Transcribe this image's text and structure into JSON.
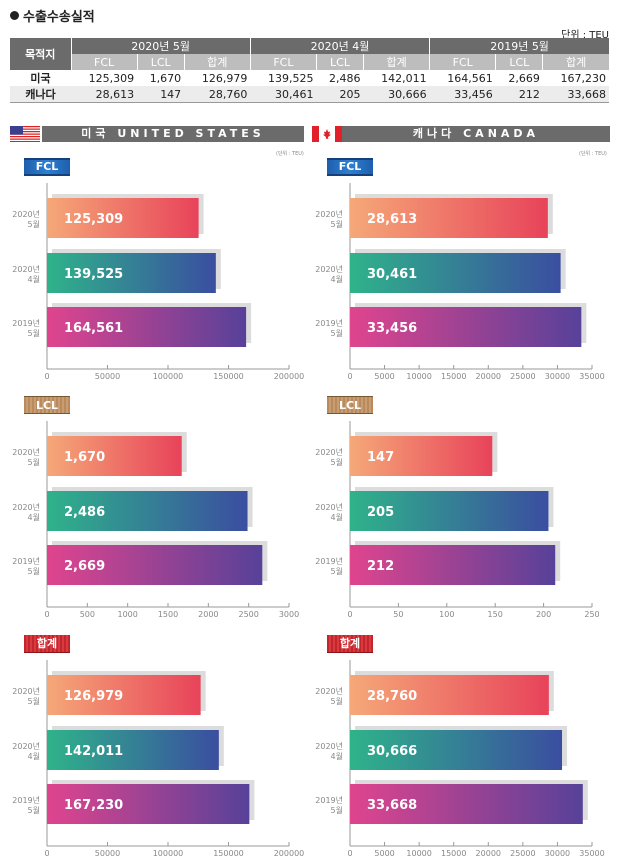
{
  "title": "수출수송실적",
  "unit": "단위 : TEU",
  "unit_small": "(단위 : TEU)",
  "table": {
    "dest_header": "목적지",
    "periods": [
      "2020년 5월",
      "2020년 4월",
      "2019년 5월"
    ],
    "sub_headers": [
      "FCL",
      "LCL",
      "합계"
    ],
    "rows": [
      {
        "name": "미국",
        "values": [
          "125,309",
          "1,670",
          "126,979",
          "139,525",
          "2,486",
          "142,011",
          "164,561",
          "2,669",
          "167,230"
        ]
      },
      {
        "name": "캐나다",
        "values": [
          "28,613",
          "147",
          "28,760",
          "30,461",
          "205",
          "30,666",
          "33,456",
          "212",
          "33,668"
        ]
      }
    ]
  },
  "countries": {
    "us": {
      "label": "미국 UNITED STATES",
      "flag": "us-flag"
    },
    "ca": {
      "label": "캐나다 CANADA",
      "flag": "canada-flag"
    }
  },
  "badges": {
    "fcl": "FCL",
    "lcl": "LCL",
    "total": "합계"
  },
  "colors": {
    "bar1": [
      "#f5a878",
      "#e8435a"
    ],
    "bar2": [
      "#2fb38a",
      "#3a4ea0"
    ],
    "bar3": [
      "#e0448e",
      "#574199"
    ],
    "header_gray": "#6b6b6b"
  },
  "chart_data": [
    {
      "id": "us-fcl",
      "type": "bar",
      "orientation": "horizontal",
      "title": "FCL",
      "country": "미국",
      "categories": [
        [
          "2020년",
          "5월"
        ],
        [
          "2020년",
          "4월"
        ],
        [
          "2019년",
          "5월"
        ]
      ],
      "values": [
        125309,
        139525,
        164561
      ],
      "labels": [
        "125,309",
        "139,525",
        "164,561"
      ],
      "xlim": [
        0,
        200000
      ],
      "ticks": [
        0,
        50000,
        100000,
        150000,
        200000
      ]
    },
    {
      "id": "ca-fcl",
      "type": "bar",
      "orientation": "horizontal",
      "title": "FCL",
      "country": "캐나다",
      "categories": [
        [
          "2020년",
          "5월"
        ],
        [
          "2020년",
          "4월"
        ],
        [
          "2019년",
          "5월"
        ]
      ],
      "values": [
        28613,
        30461,
        33456
      ],
      "labels": [
        "28,613",
        "30,461",
        "33,456"
      ],
      "xlim": [
        0,
        35000
      ],
      "ticks": [
        0,
        5000,
        10000,
        15000,
        20000,
        25000,
        30000,
        35000
      ]
    },
    {
      "id": "us-lcl",
      "type": "bar",
      "orientation": "horizontal",
      "title": "LCL",
      "country": "미국",
      "categories": [
        [
          "2020년",
          "5월"
        ],
        [
          "2020년",
          "4월"
        ],
        [
          "2019년",
          "5월"
        ]
      ],
      "values": [
        1670,
        2486,
        2669
      ],
      "labels": [
        "1,670",
        "2,486",
        "2,669"
      ],
      "xlim": [
        0,
        3000
      ],
      "ticks": [
        0,
        500,
        1000,
        1500,
        2000,
        2500,
        3000
      ]
    },
    {
      "id": "ca-lcl",
      "type": "bar",
      "orientation": "horizontal",
      "title": "LCL",
      "country": "캐나다",
      "categories": [
        [
          "2020년",
          "5월"
        ],
        [
          "2020년",
          "4월"
        ],
        [
          "2019년",
          "5월"
        ]
      ],
      "values": [
        147,
        205,
        212
      ],
      "labels": [
        "147",
        "205",
        "212"
      ],
      "xlim": [
        0,
        250
      ],
      "ticks": [
        0,
        50,
        100,
        150,
        200,
        250
      ]
    },
    {
      "id": "us-total",
      "type": "bar",
      "orientation": "horizontal",
      "title": "합계",
      "country": "미국",
      "categories": [
        [
          "2020년",
          "5월"
        ],
        [
          "2020년",
          "4월"
        ],
        [
          "2019년",
          "5월"
        ]
      ],
      "values": [
        126979,
        142011,
        167230
      ],
      "labels": [
        "126,979",
        "142,011",
        "167,230"
      ],
      "xlim": [
        0,
        200000
      ],
      "ticks": [
        0,
        50000,
        100000,
        150000,
        200000
      ]
    },
    {
      "id": "ca-total",
      "type": "bar",
      "orientation": "horizontal",
      "title": "합계",
      "country": "캐나다",
      "categories": [
        [
          "2020년",
          "5월"
        ],
        [
          "2020년",
          "4월"
        ],
        [
          "2019년",
          "5월"
        ]
      ],
      "values": [
        28760,
        30666,
        33668
      ],
      "labels": [
        "28,760",
        "30,666",
        "33,668"
      ],
      "xlim": [
        0,
        35000
      ],
      "ticks": [
        0,
        5000,
        10000,
        15000,
        20000,
        25000,
        30000,
        35000
      ]
    }
  ]
}
